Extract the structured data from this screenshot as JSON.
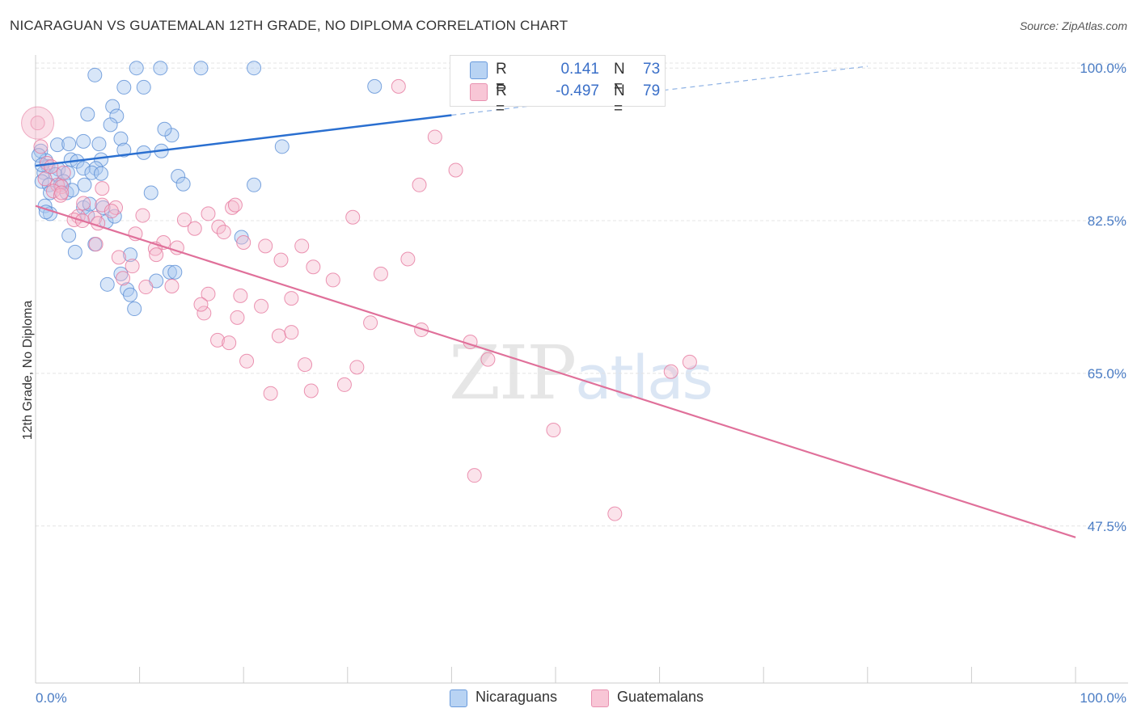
{
  "title": "NICARAGUAN VS GUATEMALAN 12TH GRADE, NO DIPLOMA CORRELATION CHART",
  "source": "Source: ZipAtlas.com",
  "watermark": {
    "zip": "ZIP",
    "atlas": "atlas"
  },
  "legend": {
    "nicaraguans": {
      "r_label": "R =",
      "r_value": "0.141",
      "n_label": "N =",
      "n_value": "73",
      "color": "#a9c8f0"
    },
    "guatemalans": {
      "r_label": "R =",
      "r_value": "-0.497",
      "n_label": "N =",
      "n_value": "79",
      "color": "#f5b8cc"
    }
  },
  "bottom_legend": {
    "nicaraguans": "Nicaraguans",
    "guatemalans": "Guatemalans"
  },
  "chart_data": {
    "type": "scatter",
    "ylabel": "12th Grade, No Diploma",
    "xlim": [
      0,
      100
    ],
    "ylim": [
      29.5,
      101.5
    ],
    "x_tick_labels": [
      "0.0%",
      "100.0%"
    ],
    "y_ticks": [
      {
        "value": 100.0,
        "label": "100.0%"
      },
      {
        "value": 82.5,
        "label": "82.5%"
      },
      {
        "value": 65.0,
        "label": "65.0%"
      },
      {
        "value": 47.5,
        "label": "47.5%"
      }
    ],
    "grid": true,
    "colors": {
      "nicaraguans": "#5b8fd6",
      "guatemalans": "#e6799f",
      "nic_line": "#2a6fd0",
      "gua_line": "#e0709a"
    },
    "trend_lines": [
      {
        "series": "Nicaraguans",
        "x": [
          0,
          40
        ],
        "y": [
          88.8,
          94.6
        ],
        "dashed_to": [
          80,
          100.2
        ]
      },
      {
        "series": "Guatemalans",
        "x": [
          0,
          100
        ],
        "y": [
          84.2,
          46.2
        ]
      }
    ],
    "series": [
      {
        "name": "Nicaraguans",
        "points": [
          [
            5.7,
            99.2
          ],
          [
            9.7,
            100.0
          ],
          [
            12.0,
            100.0
          ],
          [
            15.9,
            100.0
          ],
          [
            21.0,
            100.0
          ],
          [
            8.5,
            97.8
          ],
          [
            10.4,
            97.8
          ],
          [
            32.6,
            97.9
          ],
          [
            7.4,
            95.6
          ],
          [
            7.8,
            94.5
          ],
          [
            5.0,
            94.7
          ],
          [
            7.2,
            93.5
          ],
          [
            13.1,
            92.3
          ],
          [
            8.2,
            91.9
          ],
          [
            2.1,
            91.2
          ],
          [
            3.2,
            91.3
          ],
          [
            4.6,
            91.6
          ],
          [
            6.1,
            91.3
          ],
          [
            8.5,
            90.6
          ],
          [
            10.4,
            90.3
          ],
          [
            12.1,
            90.5
          ],
          [
            23.7,
            91.0
          ],
          [
            0.5,
            90.5
          ],
          [
            1.0,
            89.4
          ],
          [
            3.4,
            89.5
          ],
          [
            4.0,
            89.3
          ],
          [
            6.3,
            89.5
          ],
          [
            1.2,
            88.7
          ],
          [
            2.2,
            88.4
          ],
          [
            4.6,
            88.5
          ],
          [
            5.8,
            88.5
          ],
          [
            0.8,
            88.0
          ],
          [
            1.9,
            87.8
          ],
          [
            3.1,
            88.0
          ],
          [
            5.4,
            88.0
          ],
          [
            6.3,
            87.9
          ],
          [
            13.7,
            87.6
          ],
          [
            0.6,
            87.0
          ],
          [
            1.3,
            86.6
          ],
          [
            2.4,
            86.6
          ],
          [
            4.7,
            86.6
          ],
          [
            21.0,
            86.6
          ],
          [
            1.4,
            85.7
          ],
          [
            3.0,
            85.7
          ],
          [
            11.1,
            85.7
          ],
          [
            0.9,
            84.2
          ],
          [
            4.6,
            84.0
          ],
          [
            6.5,
            84.0
          ],
          [
            1.4,
            83.3
          ],
          [
            5.0,
            83.1
          ],
          [
            6.8,
            82.4
          ],
          [
            3.2,
            80.8
          ],
          [
            19.8,
            80.6
          ],
          [
            5.7,
            79.8
          ],
          [
            3.8,
            78.9
          ],
          [
            9.1,
            78.6
          ],
          [
            12.9,
            76.6
          ],
          [
            13.4,
            76.6
          ],
          [
            8.2,
            76.4
          ],
          [
            11.6,
            75.6
          ],
          [
            6.9,
            75.2
          ],
          [
            8.8,
            74.6
          ],
          [
            9.1,
            74.0
          ],
          [
            9.5,
            72.4
          ],
          [
            0.3,
            90.0
          ],
          [
            0.6,
            88.9
          ],
          [
            2.7,
            87.0
          ],
          [
            14.2,
            86.7
          ],
          [
            5.2,
            84.4
          ],
          [
            1.0,
            83.5
          ],
          [
            7.6,
            83.0
          ],
          [
            3.5,
            86.0
          ],
          [
            12.4,
            93.0
          ]
        ]
      },
      {
        "name": "Guatemalans",
        "points": [
          [
            0.2,
            93.7
          ],
          [
            0.5,
            91.0
          ],
          [
            1.1,
            89.1
          ],
          [
            1.5,
            88.7
          ],
          [
            2.7,
            88.0
          ],
          [
            0.9,
            87.3
          ],
          [
            2.1,
            86.6
          ],
          [
            2.5,
            86.4
          ],
          [
            1.7,
            85.9
          ],
          [
            2.4,
            85.4
          ],
          [
            2.5,
            85.7
          ],
          [
            4.6,
            84.5
          ],
          [
            6.4,
            84.3
          ],
          [
            7.7,
            84.0
          ],
          [
            4.1,
            83.0
          ],
          [
            5.7,
            82.8
          ],
          [
            6.0,
            82.2
          ],
          [
            3.7,
            82.6
          ],
          [
            4.5,
            82.5
          ],
          [
            7.3,
            83.6
          ],
          [
            10.3,
            83.1
          ],
          [
            14.3,
            82.6
          ],
          [
            15.3,
            81.6
          ],
          [
            9.6,
            81.0
          ],
          [
            12.3,
            80.0
          ],
          [
            11.5,
            79.3
          ],
          [
            13.6,
            79.4
          ],
          [
            11.6,
            78.6
          ],
          [
            5.8,
            79.8
          ],
          [
            16.6,
            83.3
          ],
          [
            17.6,
            81.8
          ],
          [
            18.1,
            81.2
          ],
          [
            18.9,
            84.0
          ],
          [
            20.0,
            80.0
          ],
          [
            22.1,
            79.6
          ],
          [
            23.6,
            78.0
          ],
          [
            25.6,
            79.6
          ],
          [
            26.7,
            77.2
          ],
          [
            28.6,
            75.7
          ],
          [
            23.4,
            69.3
          ],
          [
            24.6,
            73.6
          ],
          [
            21.7,
            72.7
          ],
          [
            19.7,
            73.9
          ],
          [
            19.4,
            71.4
          ],
          [
            16.6,
            74.1
          ],
          [
            16.2,
            71.9
          ],
          [
            15.9,
            72.9
          ],
          [
            13.1,
            75.0
          ],
          [
            10.6,
            74.9
          ],
          [
            9.3,
            77.3
          ],
          [
            8.4,
            75.9
          ],
          [
            8.0,
            78.3
          ],
          [
            17.5,
            68.8
          ],
          [
            18.6,
            68.5
          ],
          [
            20.3,
            66.4
          ],
          [
            25.9,
            66.0
          ],
          [
            26.5,
            63.0
          ],
          [
            22.6,
            62.7
          ],
          [
            24.6,
            69.7
          ],
          [
            29.7,
            63.7
          ],
          [
            30.9,
            65.7
          ],
          [
            32.2,
            70.8
          ],
          [
            33.2,
            76.4
          ],
          [
            35.8,
            78.1
          ],
          [
            37.1,
            70.0
          ],
          [
            41.8,
            68.6
          ],
          [
            43.5,
            66.6
          ],
          [
            42.2,
            53.3
          ],
          [
            49.8,
            58.5
          ],
          [
            55.7,
            48.9
          ],
          [
            61.1,
            65.2
          ],
          [
            62.9,
            66.3
          ],
          [
            30.5,
            82.9
          ],
          [
            34.9,
            97.9
          ],
          [
            38.4,
            92.1
          ],
          [
            36.9,
            86.6
          ],
          [
            40.4,
            88.3
          ],
          [
            19.2,
            84.3
          ],
          [
            6.4,
            86.2
          ]
        ]
      }
    ]
  }
}
